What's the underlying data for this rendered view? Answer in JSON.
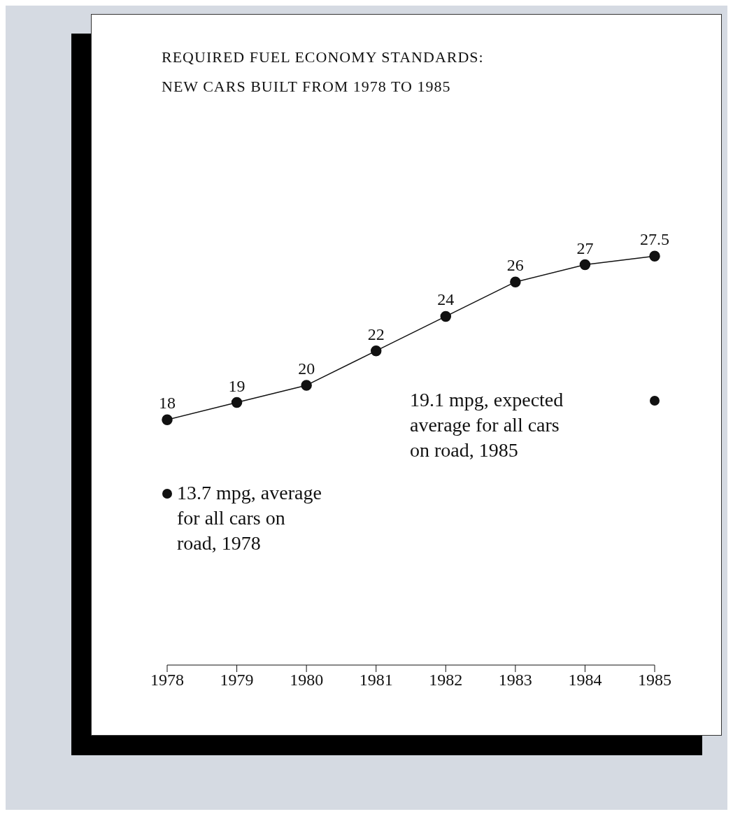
{
  "chart_data": {
    "type": "line",
    "title": "REQUIRED FUEL ECONOMY STANDARDS:",
    "subtitle": "NEW CARS BUILT FROM 1978 TO 1985",
    "categories": [
      "1978",
      "1979",
      "1980",
      "1981",
      "1982",
      "1983",
      "1984",
      "1985"
    ],
    "series": [
      {
        "color": "#111111",
        "values": [
          18,
          19,
          20,
          22,
          24,
          26,
          27,
          27.5
        ],
        "value_labels": [
          "18",
          "19",
          "20",
          "22",
          "24",
          "26",
          "27",
          "27.5"
        ]
      },
      {
        "type": "scatter",
        "color": "#111111",
        "values": [
          13.7,
          null,
          null,
          null,
          null,
          null,
          null,
          19.1
        ]
      }
    ],
    "marker": "circle",
    "line_style": "solid",
    "tick_labels": "x",
    "grid": false,
    "legend": false,
    "annotations": [
      "13.7 mpg, average for all cars on road, 1978",
      "19.1 mpg, expected average for all cars on road, 1985"
    ]
  }
}
